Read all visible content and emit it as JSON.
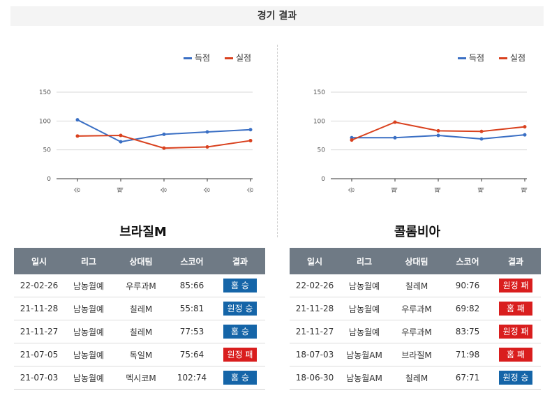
{
  "header": {
    "title": "경기 결과"
  },
  "legend": {
    "scored": "득점",
    "conceded": "실점"
  },
  "colors": {
    "scored": "#3a6fc4",
    "conceded": "#d9411e",
    "win": "#1565a8",
    "loss": "#d91e1e",
    "header_bg": "#6f7a85"
  },
  "table_headers": [
    "일시",
    "리그",
    "상대팀",
    "스코어",
    "결과"
  ],
  "chart_data": [
    {
      "type": "line",
      "categories": [
        "승",
        "패",
        "승",
        "승",
        "승"
      ],
      "series": [
        {
          "name": "득점",
          "values": [
            102,
            64,
            77,
            81,
            85
          ]
        },
        {
          "name": "실점",
          "values": [
            74,
            75,
            53,
            55,
            66
          ]
        }
      ],
      "ylim": [
        0,
        150
      ],
      "yticks": [
        "0",
        "50",
        "100",
        "150"
      ],
      "grid": true,
      "legend_position": "top-right"
    },
    {
      "type": "line",
      "categories": [
        "승",
        "패",
        "패",
        "패",
        "패"
      ],
      "series": [
        {
          "name": "득점",
          "values": [
            71,
            71,
            75,
            69,
            76
          ]
        },
        {
          "name": "실점",
          "values": [
            67,
            98,
            83,
            82,
            90
          ]
        }
      ],
      "ylim": [
        0,
        150
      ],
      "yticks": [
        "0",
        "50",
        "100",
        "150"
      ],
      "grid": true,
      "legend_position": "top-right"
    }
  ],
  "teams": [
    {
      "name": "브라질M",
      "rows": [
        {
          "date": "22-02-26",
          "league": "남농월예",
          "opponent": "우루과M",
          "score": "85:66",
          "result": "홈 승",
          "win": true
        },
        {
          "date": "21-11-28",
          "league": "남농월예",
          "opponent": "칠레M",
          "score": "55:81",
          "result": "원정 승",
          "win": true
        },
        {
          "date": "21-11-27",
          "league": "남농월예",
          "opponent": "칠레M",
          "score": "77:53",
          "result": "홈 승",
          "win": true
        },
        {
          "date": "21-07-05",
          "league": "남농월예",
          "opponent": "독일M",
          "score": "75:64",
          "result": "원정 패",
          "win": false
        },
        {
          "date": "21-07-03",
          "league": "남농월예",
          "opponent": "멕시코M",
          "score": "102:74",
          "result": "홈 승",
          "win": true
        }
      ]
    },
    {
      "name": "콜롬비아",
      "rows": [
        {
          "date": "22-02-26",
          "league": "남농월예",
          "opponent": "칠레M",
          "score": "90:76",
          "result": "원정 패",
          "win": false
        },
        {
          "date": "21-11-28",
          "league": "남농월예",
          "opponent": "우루과M",
          "score": "69:82",
          "result": "홈 패",
          "win": false
        },
        {
          "date": "21-11-27",
          "league": "남농월예",
          "opponent": "우루과M",
          "score": "83:75",
          "result": "원정 패",
          "win": false
        },
        {
          "date": "18-07-03",
          "league": "남농월AM",
          "opponent": "브라질M",
          "score": "71:98",
          "result": "홈 패",
          "win": false
        },
        {
          "date": "18-06-30",
          "league": "남농월AM",
          "opponent": "칠레M",
          "score": "67:71",
          "result": "원정 승",
          "win": true
        }
      ]
    }
  ]
}
